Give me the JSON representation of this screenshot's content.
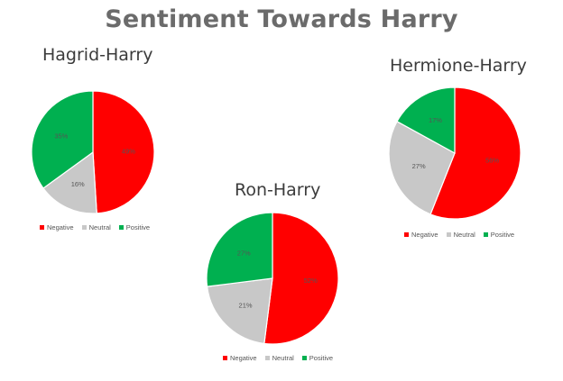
{
  "page_title": "Sentiment Towards Harry",
  "colors": {
    "negative": "#ff0000",
    "neutral": "#c8c8c8",
    "positive": "#00b050"
  },
  "chart_data": [
    {
      "type": "pie",
      "title": "Hagrid-Harry",
      "categories": [
        "Negative",
        "Neutral",
        "Positive"
      ],
      "values": [
        49,
        16,
        35
      ],
      "data_labels": [
        "49%",
        "16%",
        "35%"
      ],
      "legend_position": "bottom"
    },
    {
      "type": "pie",
      "title": "Ron-Harry",
      "categories": [
        "Negative",
        "Neutral",
        "Positive"
      ],
      "values": [
        52,
        21,
        27
      ],
      "data_labels": [
        "52%",
        "21%",
        "27%"
      ],
      "legend_position": "bottom"
    },
    {
      "type": "pie",
      "title": "Hermione-Harry",
      "categories": [
        "Negative",
        "Neutral",
        "Positive"
      ],
      "values": [
        56,
        27,
        17
      ],
      "data_labels": [
        "56%",
        "27%",
        "17%"
      ],
      "legend_position": "bottom"
    }
  ]
}
